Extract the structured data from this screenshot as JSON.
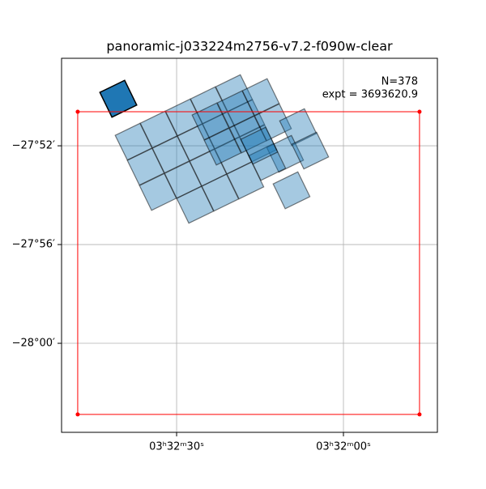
{
  "chart_data": {
    "type": "footprint",
    "title": "panoramic-j033224m2756-v7.2-f090w-clear",
    "annotations": [
      "N=378",
      "expt = 3693620.9"
    ],
    "xlim": [
      53.2112,
      52.9296
    ],
    "ylim": [
      -28.0601,
      -27.8076
    ],
    "xticks": [
      {
        "value": 53.125,
        "label": "03ʰ32ᵐ30ˢ"
      },
      {
        "value": 53.0,
        "label": "03ʰ32ᵐ00ˢ"
      }
    ],
    "yticks": [
      {
        "value": -27.866667,
        "label": "−27°52′"
      },
      {
        "value": -27.933333,
        "label": "−27°56′"
      },
      {
        "value": -28.0,
        "label": "−28°00′"
      }
    ],
    "grid": true,
    "footprints": {
      "color": "#1f77b4",
      "ra": [
        53.1572,
        53.1384,
        53.1196,
        53.1008,
        53.082,
        53.1481,
        53.1293,
        53.1105,
        53.0917,
        53.0729,
        53.139,
        53.1202,
        53.1014,
        53.0826,
        53.0638,
        53.1111,
        53.0923,
        53.0735,
        53.0996,
        53.0807,
        53.0619,
        53.0905,
        53.0716,
        53.0528,
        53.034,
        53.0437,
        53.0249,
        53.0571,
        53.0389,
        53.0631,
        53.1687
      ],
      "dec": [
        -27.8639,
        -27.8557,
        -27.8475,
        -27.8393,
        -27.8311,
        -27.8808,
        -27.8726,
        -27.8644,
        -27.8562,
        -27.848,
        -27.8978,
        -27.8896,
        -27.8814,
        -27.8732,
        -27.865,
        -27.9065,
        -27.8983,
        -27.8901,
        -27.8502,
        -27.842,
        -27.8338,
        -27.8672,
        -27.859,
        -27.8508,
        -27.8541,
        -27.8721,
        -27.8699,
        -27.8776,
        -27.8967,
        -27.8666,
        -27.8349
      ]
    },
    "box": {
      "color": "red",
      "ra": [
        53.1991,
        52.943,
        52.943,
        53.1991
      ],
      "dec": [
        -27.8437,
        -27.8437,
        -28.048,
        -28.048
      ]
    }
  }
}
